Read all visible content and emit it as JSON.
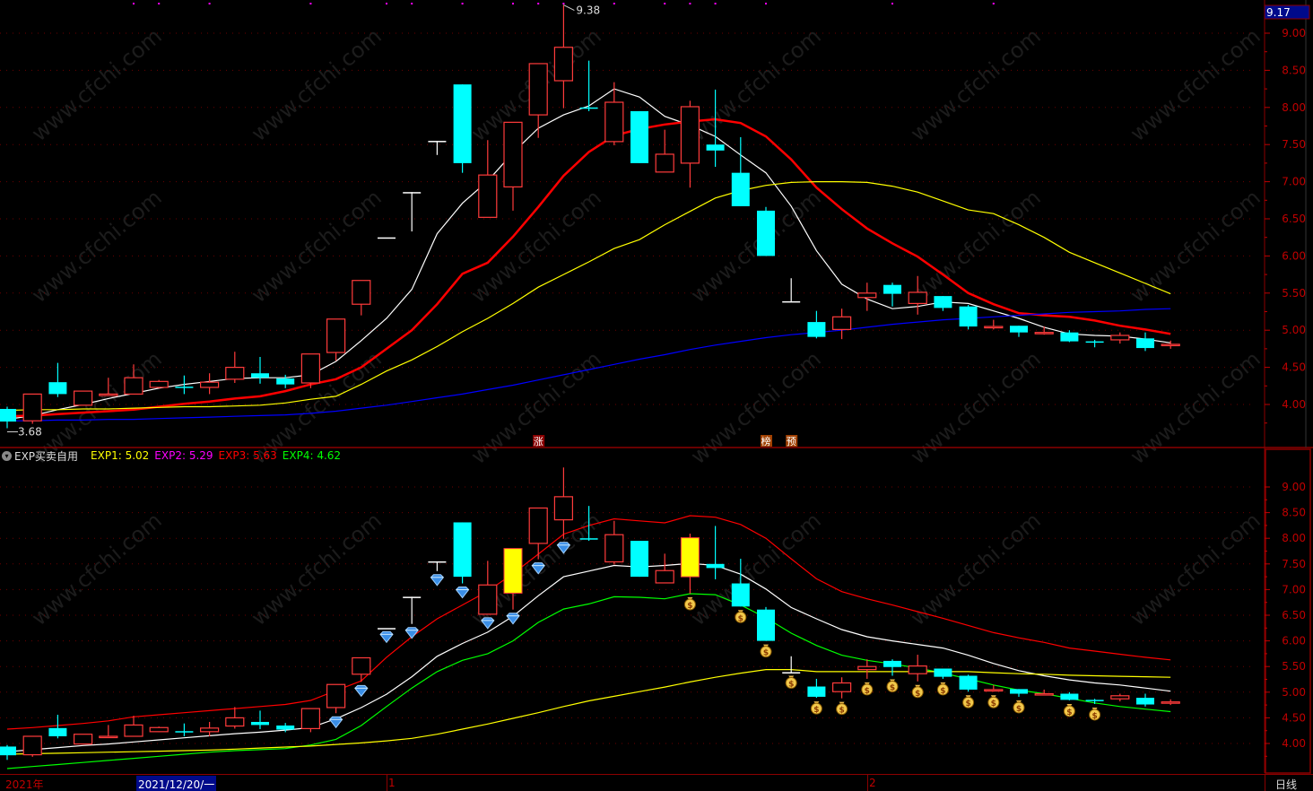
{
  "colors": {
    "up": "#ff3b3b",
    "down": "#00ffff",
    "flat": "#ffffff",
    "axis": "#c00000",
    "grid": "#6b0000",
    "ma1": "#ffffff",
    "ma2": "#ff0000",
    "ma3": "#ffff00",
    "ma4": "#0000ff",
    "exp1": "#ffffff",
    "exp2": "#ffff00",
    "exp3": "#ff0000",
    "exp4": "#00ff00",
    "highlight": "#ffff00"
  },
  "watermark": "www.cfchi.com",
  "price_axis": {
    "ticks": [
      "9.00",
      "8.50",
      "8.00",
      "7.50",
      "7.00",
      "6.50",
      "6.00",
      "5.50",
      "5.00",
      "4.50",
      "4.00"
    ],
    "cursor_value": "9.17"
  },
  "annotations": {
    "high_label": "9.38",
    "low_label": "3.68"
  },
  "event_badges": [
    {
      "text": "涨",
      "candle": 21,
      "bg": "#8b0000"
    },
    {
      "text": "榜",
      "candle": 30,
      "bg": "#a04000"
    },
    {
      "text": "预",
      "candle": 31,
      "bg": "#a04000"
    }
  ],
  "indicator": {
    "name": "EXP买卖自用",
    "exp1": "EXP1: 5.02",
    "exp2": "EXP2: 5.29",
    "exp3": "EXP3: 5.63",
    "exp4": "EXP4: 4.62",
    "exp1_color": "#ffff00",
    "exp2_color": "#ff00ff",
    "exp3_color": "#ff0000",
    "exp4_color": "#00ff00"
  },
  "date_bar": {
    "year": "2021年",
    "cursor_date": "2021/12/20/一",
    "month1": "1",
    "month2": "2",
    "period": "日线"
  },
  "chart_data": [
    {
      "type": "candlestick",
      "pane": "main",
      "ylim": [
        3.6,
        9.45
      ],
      "grid": true,
      "top_markers": [
        5,
        6,
        8,
        12,
        15,
        16,
        18,
        20,
        21,
        22,
        24,
        26,
        27,
        28,
        30,
        35,
        39
      ],
      "candles": [
        {
          "o": 3.94,
          "h": 3.97,
          "l": 3.68,
          "c": 3.77,
          "t": "d"
        },
        {
          "o": 3.78,
          "h": 4.14,
          "l": 3.74,
          "c": 4.14,
          "t": "u"
        },
        {
          "o": 4.3,
          "h": 4.56,
          "l": 4.1,
          "c": 4.14,
          "t": "d"
        },
        {
          "o": 3.99,
          "h": 4.18,
          "l": 3.99,
          "c": 4.18,
          "t": "u"
        },
        {
          "o": 4.12,
          "h": 4.36,
          "l": 4.12,
          "c": 4.14,
          "t": "u"
        },
        {
          "o": 4.14,
          "h": 4.54,
          "l": 4.14,
          "c": 4.36,
          "t": "u"
        },
        {
          "o": 4.23,
          "h": 4.33,
          "l": 4.22,
          "c": 4.31,
          "t": "u"
        },
        {
          "o": 4.24,
          "h": 4.39,
          "l": 4.14,
          "c": 4.24,
          "t": "d"
        },
        {
          "o": 4.23,
          "h": 4.42,
          "l": 4.14,
          "c": 4.3,
          "t": "u"
        },
        {
          "o": 4.34,
          "h": 4.71,
          "l": 4.29,
          "c": 4.5,
          "t": "u"
        },
        {
          "o": 4.42,
          "h": 4.64,
          "l": 4.28,
          "c": 4.36,
          "t": "d"
        },
        {
          "o": 4.35,
          "h": 4.4,
          "l": 4.22,
          "c": 4.27,
          "t": "d"
        },
        {
          "o": 4.29,
          "h": 4.68,
          "l": 4.22,
          "c": 4.68,
          "t": "u"
        },
        {
          "o": 4.7,
          "h": 5.15,
          "l": 4.59,
          "c": 5.15,
          "t": "u"
        },
        {
          "o": 5.35,
          "h": 5.67,
          "l": 5.2,
          "c": 5.67,
          "t": "u"
        },
        {
          "o": 6.25,
          "h": 6.25,
          "l": 6.25,
          "c": 6.25,
          "t": "f"
        },
        {
          "o": 6.86,
          "h": 6.86,
          "l": 6.33,
          "c": 6.86,
          "t": "f"
        },
        {
          "o": 7.55,
          "h": 7.55,
          "l": 7.36,
          "c": 7.55,
          "t": "f"
        },
        {
          "o": 8.31,
          "h": 8.31,
          "l": 7.12,
          "c": 7.25,
          "t": "d"
        },
        {
          "o": 6.52,
          "h": 7.56,
          "l": 6.52,
          "c": 7.09,
          "t": "u"
        },
        {
          "o": 6.93,
          "h": 7.8,
          "l": 6.61,
          "c": 7.8,
          "t": "u"
        },
        {
          "o": 7.9,
          "h": 8.59,
          "l": 7.59,
          "c": 8.59,
          "t": "u"
        },
        {
          "o": 8.36,
          "h": 9.38,
          "l": 7.99,
          "c": 8.81,
          "t": "u"
        },
        {
          "o": 8.0,
          "h": 8.63,
          "l": 7.95,
          "c": 8.0,
          "t": "d"
        },
        {
          "o": 7.54,
          "h": 8.34,
          "l": 7.49,
          "c": 8.07,
          "t": "u"
        },
        {
          "o": 7.95,
          "h": 7.95,
          "l": 7.25,
          "c": 7.25,
          "t": "d"
        },
        {
          "o": 7.13,
          "h": 7.7,
          "l": 7.13,
          "c": 7.37,
          "t": "u"
        },
        {
          "o": 7.25,
          "h": 8.09,
          "l": 6.92,
          "c": 8.01,
          "t": "u"
        },
        {
          "o": 7.5,
          "h": 8.24,
          "l": 7.2,
          "c": 7.42,
          "t": "d"
        },
        {
          "o": 7.12,
          "h": 7.6,
          "l": 6.67,
          "c": 6.67,
          "t": "d"
        },
        {
          "o": 6.61,
          "h": 6.66,
          "l": 6.0,
          "c": 6.0,
          "t": "d"
        },
        {
          "o": 5.39,
          "h": 5.7,
          "l": 5.39,
          "c": 5.39,
          "t": "f"
        },
        {
          "o": 5.11,
          "h": 5.26,
          "l": 4.89,
          "c": 4.91,
          "t": "d"
        },
        {
          "o": 5.01,
          "h": 5.29,
          "l": 4.88,
          "c": 5.18,
          "t": "u"
        },
        {
          "o": 5.44,
          "h": 5.64,
          "l": 5.26,
          "c": 5.5,
          "t": "u"
        },
        {
          "o": 5.61,
          "h": 5.64,
          "l": 5.32,
          "c": 5.49,
          "t": "d"
        },
        {
          "o": 5.36,
          "h": 5.73,
          "l": 5.21,
          "c": 5.51,
          "t": "u"
        },
        {
          "o": 5.46,
          "h": 5.46,
          "l": 5.26,
          "c": 5.3,
          "t": "d"
        },
        {
          "o": 5.32,
          "h": 5.34,
          "l": 5.01,
          "c": 5.05,
          "t": "d"
        },
        {
          "o": 5.05,
          "h": 5.14,
          "l": 5.01,
          "c": 5.05,
          "t": "u"
        },
        {
          "o": 5.06,
          "h": 5.06,
          "l": 4.91,
          "c": 4.97,
          "t": "d"
        },
        {
          "o": 4.97,
          "h": 5.05,
          "l": 4.94,
          "c": 4.97,
          "t": "u"
        },
        {
          "o": 4.97,
          "h": 5.0,
          "l": 4.84,
          "c": 4.85,
          "t": "d"
        },
        {
          "o": 4.85,
          "h": 4.87,
          "l": 4.77,
          "c": 4.85,
          "t": "d"
        },
        {
          "o": 4.87,
          "h": 4.97,
          "l": 4.82,
          "c": 4.93,
          "t": "u"
        },
        {
          "o": 4.89,
          "h": 4.97,
          "l": 4.72,
          "c": 4.76,
          "t": "d"
        },
        {
          "o": 4.81,
          "h": 4.86,
          "l": 4.75,
          "c": 4.81,
          "t": "u"
        }
      ],
      "lines": [
        {
          "color_key": "ma1",
          "values": [
            3.8,
            3.85,
            3.93,
            4.0,
            4.08,
            4.15,
            4.22,
            4.27,
            4.31,
            4.35,
            4.36,
            4.36,
            4.4,
            4.58,
            4.86,
            5.16,
            5.55,
            6.3,
            6.71,
            7.01,
            7.39,
            7.72,
            7.9,
            8.02,
            8.25,
            8.14,
            7.88,
            7.76,
            7.61,
            7.36,
            7.12,
            6.67,
            6.07,
            5.62,
            5.42,
            5.29,
            5.32,
            5.38,
            5.36,
            5.26,
            5.16,
            5.04,
            4.95,
            4.93,
            4.92,
            4.88,
            4.83
          ]
        },
        {
          "color_key": "ma2",
          "thick": true,
          "values": [
            3.84,
            3.85,
            3.87,
            3.89,
            3.91,
            3.93,
            3.97,
            4.01,
            4.04,
            4.08,
            4.11,
            4.18,
            4.27,
            4.34,
            4.5,
            4.75,
            5.0,
            5.35,
            5.76,
            5.91,
            6.26,
            6.66,
            7.08,
            7.4,
            7.62,
            7.71,
            7.77,
            7.81,
            7.84,
            7.79,
            7.61,
            7.3,
            6.92,
            6.63,
            6.37,
            6.17,
            5.99,
            5.75,
            5.5,
            5.35,
            5.23,
            5.2,
            5.18,
            5.13,
            5.06,
            5.01,
            4.95
          ]
        },
        {
          "color_key": "ma3",
          "values": [
            3.92,
            3.93,
            3.93,
            3.94,
            3.94,
            3.95,
            3.96,
            3.97,
            3.97,
            3.98,
            3.99,
            4.02,
            4.07,
            4.11,
            4.27,
            4.45,
            4.6,
            4.78,
            4.98,
            5.16,
            5.36,
            5.58,
            5.75,
            5.92,
            6.1,
            6.22,
            6.42,
            6.6,
            6.78,
            6.88,
            6.95,
            6.99,
            7.0,
            7.0,
            6.99,
            6.94,
            6.86,
            6.74,
            6.62,
            6.57,
            6.42,
            6.25,
            6.05,
            5.91,
            5.77,
            5.63,
            5.49
          ]
        },
        {
          "color_key": "ma4",
          "values": [
            3.78,
            3.78,
            3.79,
            3.79,
            3.8,
            3.8,
            3.81,
            3.82,
            3.83,
            3.84,
            3.85,
            3.86,
            3.88,
            3.91,
            3.95,
            3.99,
            4.04,
            4.09,
            4.14,
            4.2,
            4.26,
            4.33,
            4.4,
            4.47,
            4.54,
            4.61,
            4.67,
            4.74,
            4.8,
            4.85,
            4.9,
            4.94,
            4.97,
            5.0,
            5.04,
            5.08,
            5.11,
            5.14,
            5.16,
            5.18,
            5.2,
            5.22,
            5.24,
            5.25,
            5.26,
            5.28,
            5.29
          ]
        }
      ]
    },
    {
      "type": "candlestick",
      "pane": "indicator",
      "ylim": [
        3.45,
        9.5
      ],
      "grid": true,
      "highlight_candles": [
        20,
        27
      ],
      "buy_signals": [
        13,
        14,
        15,
        16,
        17,
        18,
        19,
        20,
        21,
        22
      ],
      "sell_signals": [
        27,
        29,
        30,
        31,
        32,
        33,
        34,
        35,
        36,
        37,
        38,
        39,
        40,
        42,
        43
      ],
      "lines": [
        {
          "name": "EXP3",
          "color_key": "exp3",
          "values": [
            4.28,
            4.31,
            4.35,
            4.39,
            4.44,
            4.52,
            4.56,
            4.6,
            4.64,
            4.68,
            4.72,
            4.76,
            4.84,
            5.03,
            5.22,
            5.68,
            6.08,
            6.43,
            6.7,
            6.97,
            7.31,
            7.69,
            8.08,
            8.25,
            8.38,
            8.34,
            8.3,
            8.44,
            8.41,
            8.27,
            8.0,
            7.6,
            7.21,
            6.96,
            6.82,
            6.7,
            6.57,
            6.44,
            6.3,
            6.16,
            6.06,
            5.97,
            5.86,
            5.8,
            5.74,
            5.68,
            5.63
          ]
        },
        {
          "name": "EXP1",
          "color_key": "exp1",
          "values": [
            3.84,
            3.88,
            3.92,
            3.96,
            3.99,
            4.03,
            4.07,
            4.11,
            4.15,
            4.19,
            4.22,
            4.26,
            4.31,
            4.48,
            4.7,
            4.96,
            5.3,
            5.7,
            5.95,
            6.17,
            6.48,
            6.88,
            7.25,
            7.36,
            7.47,
            7.44,
            7.47,
            7.51,
            7.47,
            7.3,
            7.01,
            6.65,
            6.43,
            6.22,
            6.08,
            6.0,
            5.93,
            5.86,
            5.72,
            5.56,
            5.42,
            5.32,
            5.24,
            5.18,
            5.14,
            5.08,
            5.02
          ]
        },
        {
          "name": "EXP4",
          "color_key": "exp4",
          "values": [
            3.51,
            3.55,
            3.59,
            3.63,
            3.67,
            3.71,
            3.75,
            3.79,
            3.83,
            3.86,
            3.88,
            3.9,
            3.97,
            4.08,
            4.35,
            4.72,
            5.08,
            5.4,
            5.62,
            5.75,
            6.0,
            6.36,
            6.62,
            6.72,
            6.86,
            6.85,
            6.82,
            6.92,
            6.9,
            6.7,
            6.45,
            6.15,
            5.91,
            5.72,
            5.62,
            5.55,
            5.47,
            5.37,
            5.26,
            5.14,
            5.04,
            4.97,
            4.88,
            4.79,
            4.72,
            4.67,
            4.62
          ]
        },
        {
          "name": "EXP2",
          "color_key": "exp2",
          "values": [
            3.79,
            3.8,
            3.81,
            3.82,
            3.83,
            3.84,
            3.85,
            3.86,
            3.87,
            3.89,
            3.91,
            3.93,
            3.95,
            3.98,
            4.01,
            4.05,
            4.1,
            4.18,
            4.28,
            4.38,
            4.49,
            4.6,
            4.72,
            4.83,
            4.92,
            5.01,
            5.1,
            5.2,
            5.29,
            5.37,
            5.44,
            5.44,
            5.4,
            5.4,
            5.4,
            5.4,
            5.4,
            5.4,
            5.4,
            5.38,
            5.36,
            5.35,
            5.33,
            5.32,
            5.31,
            5.3,
            5.29
          ]
        }
      ]
    }
  ]
}
